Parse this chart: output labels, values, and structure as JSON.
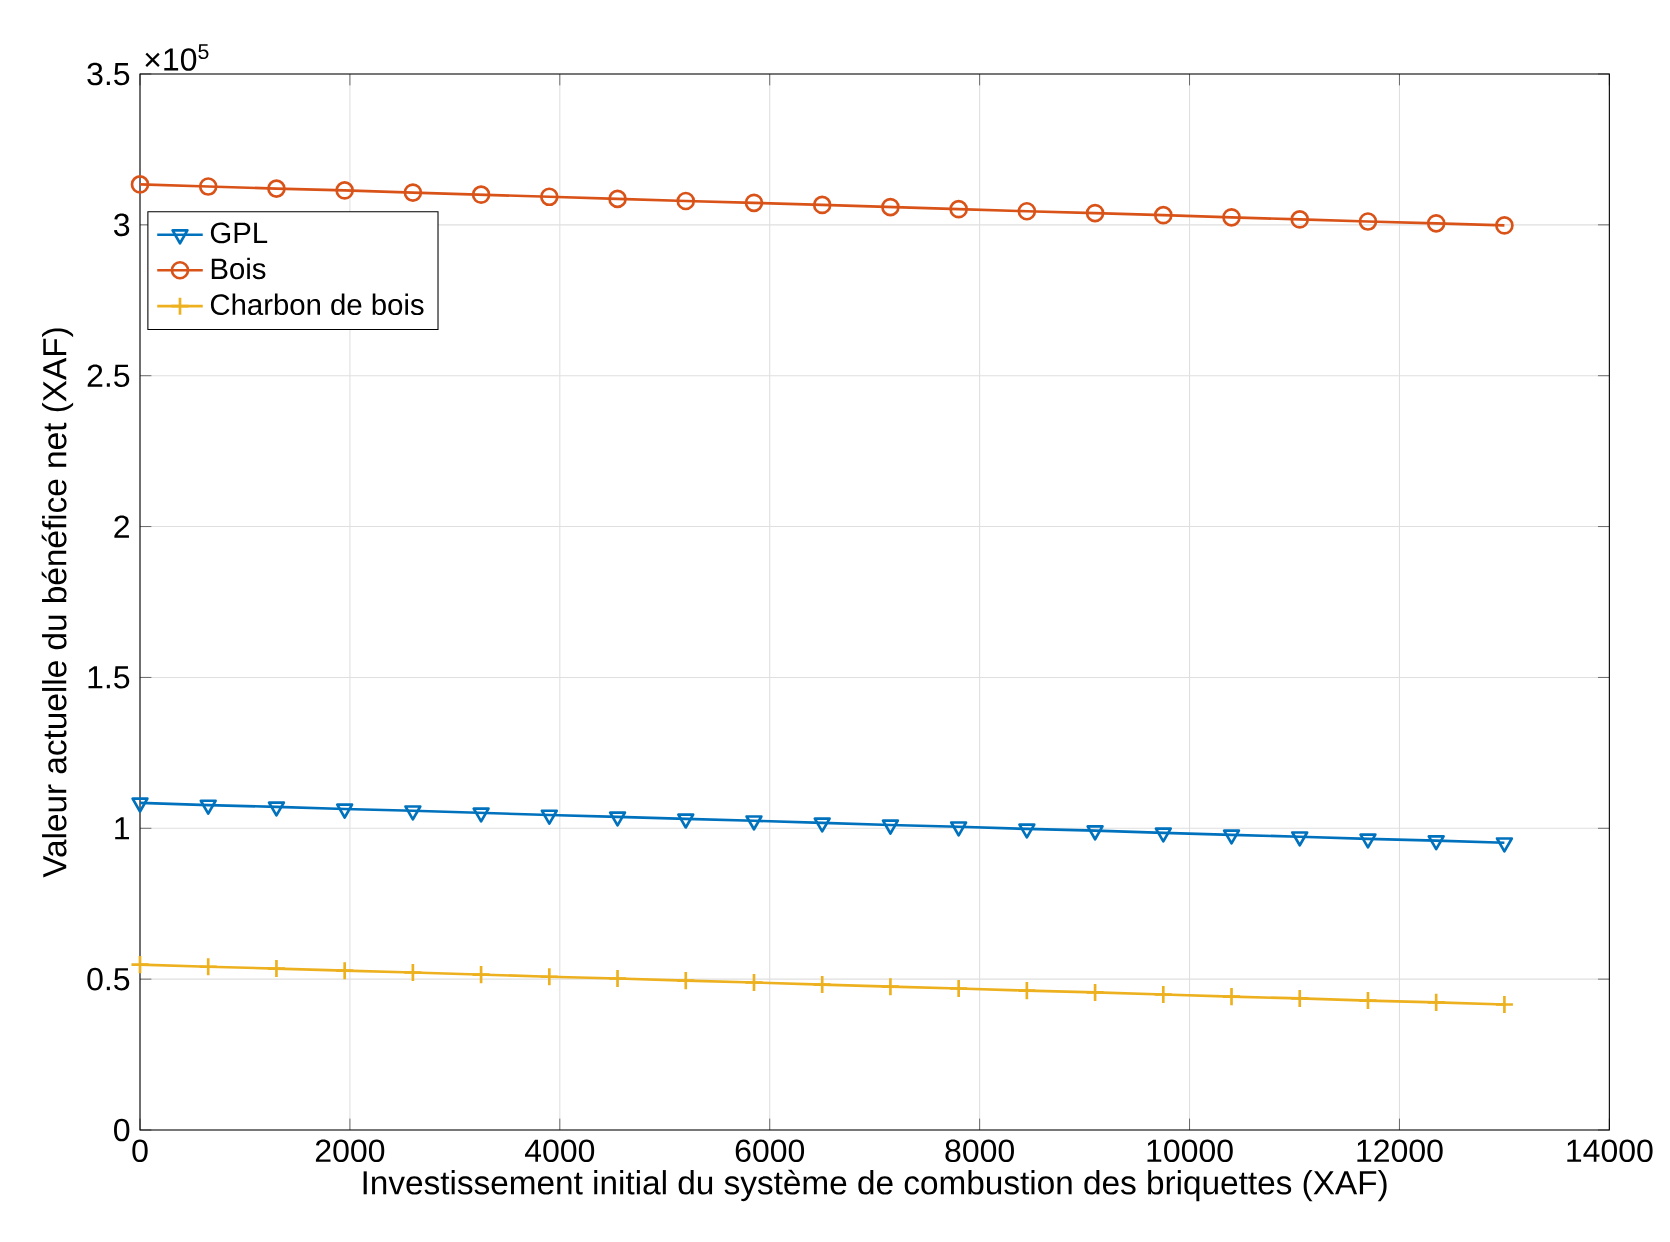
{
  "chart_data": {
    "type": "line",
    "xlabel": "Investissement initial du système de combustion des briquettes (XAF)",
    "ylabel": "Valeur actuelle du bénéfice net (XAF)",
    "annotations": [
      "×10$^{5}$"
    ],
    "x": [
      0,
      650,
      1300,
      1950,
      2600,
      3250,
      3900,
      4550,
      5200,
      5850,
      6500,
      7150,
      7800,
      8450,
      9100,
      9750,
      10400,
      11050,
      11700,
      12350,
      13000
    ],
    "series": [
      {
        "name": "GPL",
        "color": "#0072bd",
        "marker": "triangle",
        "values": [
          1.084,
          1.077,
          1.071,
          1.064,
          1.058,
          1.051,
          1.044,
          1.038,
          1.031,
          1.025,
          1.018,
          1.011,
          1.005,
          0.998,
          0.992,
          0.985,
          0.978,
          0.972,
          0.965,
          0.959,
          0.952
        ]
      },
      {
        "name": "Bois",
        "color": "#d95319",
        "marker": "circle",
        "values": [
          3.134,
          3.127,
          3.12,
          3.114,
          3.107,
          3.1,
          3.093,
          3.086,
          3.079,
          3.073,
          3.066,
          3.059,
          3.052,
          3.045,
          3.039,
          3.032,
          3.025,
          3.018,
          3.011,
          3.005,
          2.998
        ]
      },
      {
        "name": "Charbon de bois",
        "color": "#edb120",
        "marker": "cross",
        "values": [
          0.548,
          0.541,
          0.535,
          0.528,
          0.522,
          0.515,
          0.508,
          0.502,
          0.495,
          0.489,
          0.482,
          0.475,
          0.469,
          0.462,
          0.456,
          0.449,
          0.442,
          0.436,
          0.429,
          0.423,
          0.416
        ]
      }
    ],
    "xlim": [
      0,
      14000
    ],
    "ylim": [
      0,
      3.5
    ],
    "xticks": [
      0,
      2000,
      4000,
      6000,
      8000,
      10000,
      12000,
      14000
    ],
    "yticks": [
      0,
      0.5,
      1,
      1.5,
      2,
      2.5,
      3,
      3.5
    ],
    "grid": true,
    "legend": "top left",
    "line_style": "solid"
  }
}
